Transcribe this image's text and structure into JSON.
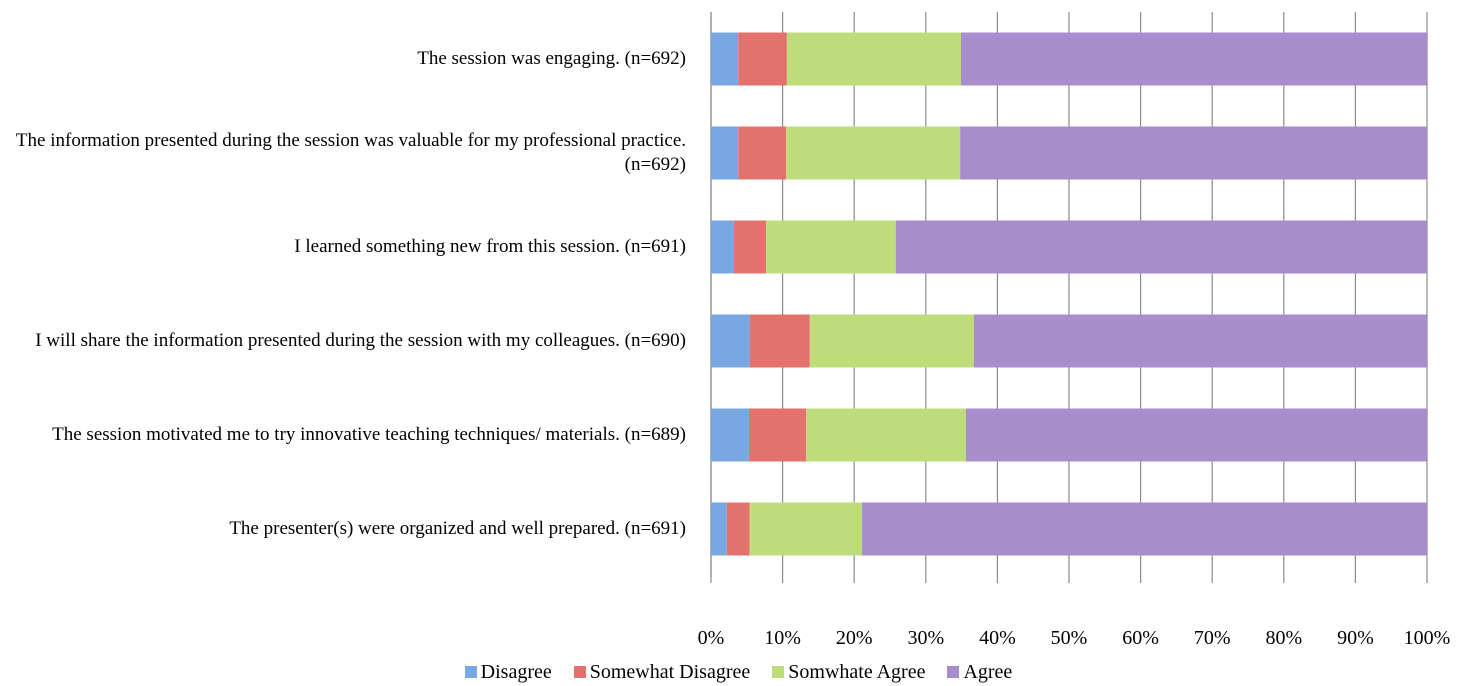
{
  "chart_data": {
    "type": "stacked-barh",
    "categories": [
      "The session was engaging. (n=692)",
      "The information presented during the session was valuable for my professional practice. (n=692)",
      "I learned something new from this session. (n=691)",
      "I will share the information presented during the session with my colleagues. (n=690)",
      "The session motivated me to try innovative teaching techniques/ materials. (n=689)",
      "The presenter(s) were organized and well prepared. (n=691)"
    ],
    "series": [
      {
        "name": "Disagree",
        "color": "#78a7e2",
        "values": [
          3.8,
          3.8,
          3.2,
          5.4,
          5.3,
          2.2
        ]
      },
      {
        "name": "Somewhat Disagree",
        "color": "#e3716d",
        "values": [
          6.8,
          6.7,
          4.5,
          8.4,
          8.0,
          3.2
        ]
      },
      {
        "name": "Somwhate Agree",
        "color": "#bfdc7b",
        "values": [
          24.3,
          24.3,
          18.1,
          22.9,
          22.3,
          15.7
        ]
      },
      {
        "name": "Agree",
        "color": "#a88dcc",
        "values": [
          65.1,
          65.2,
          74.2,
          63.3,
          64.4,
          78.9
        ]
      }
    ],
    "xlim": [
      0,
      100
    ],
    "xticks": [
      {
        "value": 0,
        "label": "0%"
      },
      {
        "value": 10,
        "label": "10%"
      },
      {
        "value": 20,
        "label": "20%"
      },
      {
        "value": 30,
        "label": "30%"
      },
      {
        "value": 40,
        "label": "40%"
      },
      {
        "value": 50,
        "label": "50%"
      },
      {
        "value": 60,
        "label": "60%"
      },
      {
        "value": 70,
        "label": "70%"
      },
      {
        "value": 80,
        "label": "80%"
      },
      {
        "value": 90,
        "label": "90%"
      },
      {
        "value": 100,
        "label": "100%"
      }
    ],
    "grid": true,
    "legend": "bottom"
  }
}
